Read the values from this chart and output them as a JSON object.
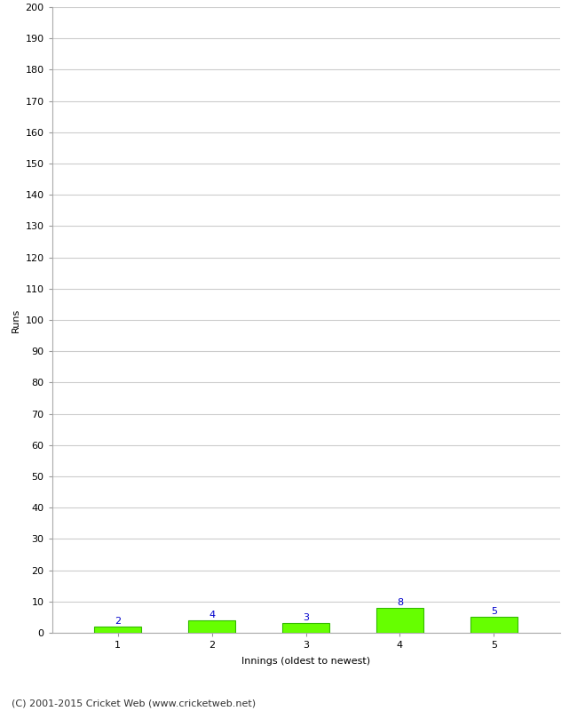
{
  "innings": [
    1,
    2,
    3,
    4,
    5
  ],
  "runs": [
    2,
    4,
    3,
    8,
    5
  ],
  "bar_color": "#66ff00",
  "bar_edge_color": "#33bb00",
  "label_color": "#0000cc",
  "xlabel": "Innings (oldest to newest)",
  "ylabel": "Runs",
  "ylim": [
    0,
    200
  ],
  "yticks": [
    0,
    10,
    20,
    30,
    40,
    50,
    60,
    70,
    80,
    90,
    100,
    110,
    120,
    130,
    140,
    150,
    160,
    170,
    180,
    190,
    200
  ],
  "footer": "(C) 2001-2015 Cricket Web (www.cricketweb.net)",
  "background_color": "#ffffff",
  "grid_color": "#cccccc",
  "label_fontsize": 8,
  "tick_fontsize": 8,
  "axis_label_fontsize": 8,
  "footer_fontsize": 8
}
